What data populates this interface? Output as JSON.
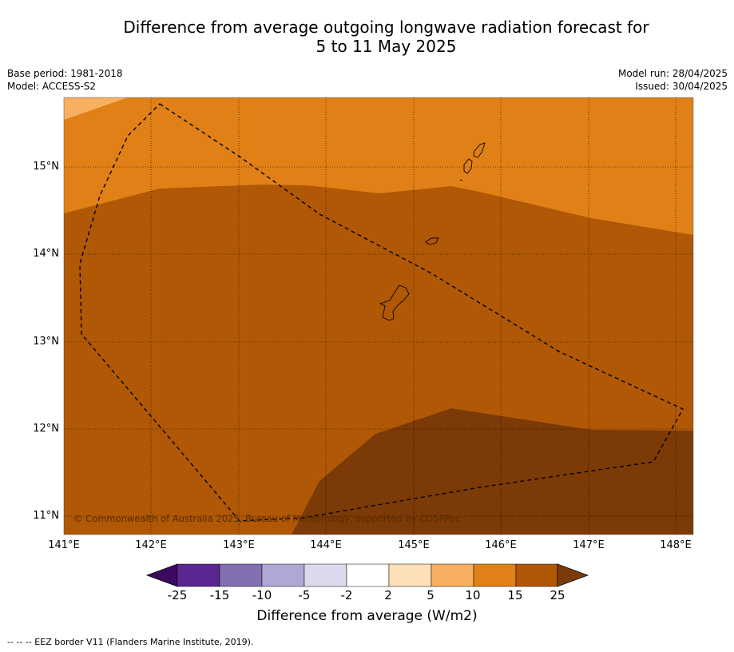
{
  "title": {
    "line1": "Difference from average outgoing longwave radiation forecast for",
    "line2": "5 to 11 May 2025"
  },
  "meta": {
    "base_period": "Base period: 1981-2018",
    "model": "Model: ACCESS-S2",
    "model_run": "Model run: 28/04/2025",
    "issued": "Issued: 30/04/2025"
  },
  "map": {
    "lon_range": [
      141.0,
      148.2
    ],
    "lat_range": [
      10.8,
      15.8
    ],
    "lat_ticks": [
      "15°N",
      "14°N",
      "13°N",
      "12°N",
      "11°N"
    ],
    "lon_ticks": [
      "141°E",
      "142°E",
      "143°E",
      "144°E",
      "145°E",
      "146°E",
      "147°E",
      "148°E"
    ],
    "copyright": "© Commonwealth of Australia 2025, Bureau of Meteorology, supported by COSPPac"
  },
  "colorbar": {
    "label": "Difference from average (W/m2)",
    "ticks": [
      "-25",
      "-15",
      "-10",
      "-5",
      "-2",
      "2",
      "5",
      "10",
      "15",
      "25"
    ],
    "colors": [
      "#3b0a5e",
      "#5a2690",
      "#8270b0",
      "#b0a8d4",
      "#dadaec",
      "#ffffff",
      "#fde0b8",
      "#f8b060",
      "#e08016",
      "#b05806",
      "#7c3a06"
    ]
  },
  "footer": {
    "legend": "--  --  -- EEZ border V11 (Flanders Marine Institute, 2019)."
  }
}
